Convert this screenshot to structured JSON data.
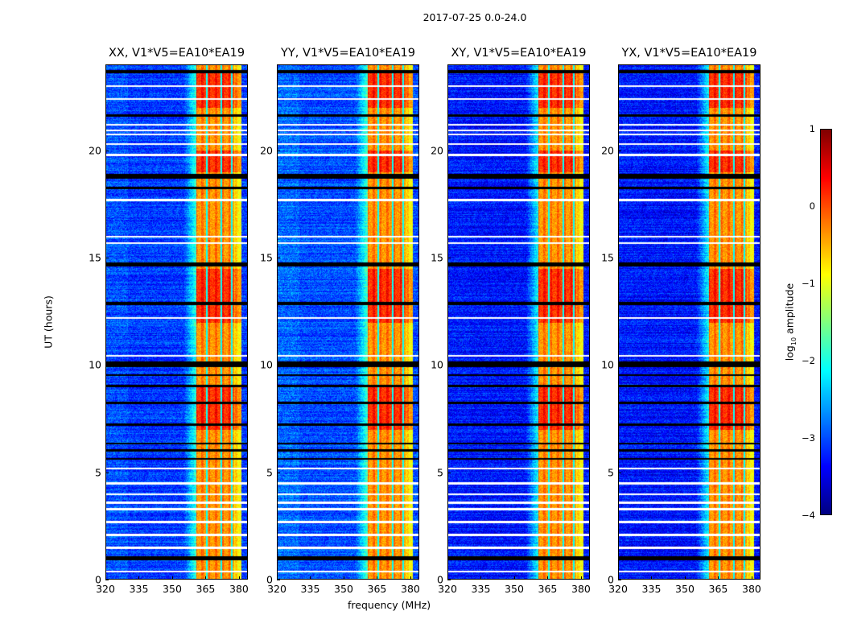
{
  "chart_data": {
    "type": "heatmap",
    "title": "2017-07-25 0.0-24.0",
    "xlabel": "frequency (MHz)",
    "ylabel": "UT (hours)",
    "xlim": [
      320,
      384
    ],
    "ylim": [
      0,
      24
    ],
    "xticks": [
      "320",
      "335",
      "350",
      "365",
      "380"
    ],
    "xtick_values": [
      320,
      335,
      350,
      365,
      380
    ],
    "yticks": [
      "0",
      "5",
      "10",
      "15",
      "20"
    ],
    "ytick_values": [
      0,
      5,
      10,
      15,
      20
    ],
    "colormap": "jet",
    "colorbar": {
      "label_main": "log",
      "label_sub": "10",
      "label_rest": " amplitude",
      "range": [
        -4,
        1
      ],
      "ticks": [
        "1",
        "0",
        "−1",
        "−2",
        "−3",
        "−4"
      ],
      "tick_values": [
        1,
        0,
        -1,
        -2,
        -3,
        -4
      ]
    },
    "panels": [
      {
        "title": "XX, V1*V5=EA10*EA19",
        "background": -3.1,
        "low_freq_enhance": -2.3
      },
      {
        "title": "YY, V1*V5=EA10*EA19",
        "background": -3.0,
        "low_freq_enhance": -2.0
      },
      {
        "title": "XY, V1*V5=EA10*EA19",
        "background": -3.3,
        "low_freq_enhance": -3.0
      },
      {
        "title": "YX, V1*V5=EA10*EA19",
        "background": -3.3,
        "low_freq_enhance": -3.0
      }
    ],
    "rfi_band_mhz": [
      360.5,
      381
    ],
    "rfi_band_level": -0.4,
    "rfi_stripe_mhz": [
      365.5,
      372,
      376.5
    ],
    "strong_rfi_hours": [
      [
        7,
        9
      ],
      [
        12,
        14.5
      ],
      [
        22,
        23.6
      ],
      [
        19,
        20
      ]
    ],
    "flagged_white_hours": [
      0.4,
      1.5,
      2.1,
      2.7,
      3.3,
      3.6,
      4.0,
      4.5,
      5.2,
      10.45,
      12.2,
      15.7,
      16.0,
      17.7,
      19.8,
      20.3,
      20.75,
      20.95,
      21.2,
      22.4,
      23.0
    ],
    "no_data_black_hours": [
      [
        0.9,
        1.1
      ],
      [
        5.6,
        5.7
      ],
      [
        6.0,
        6.1
      ],
      [
        6.3,
        6.4
      ],
      [
        7.2,
        7.3
      ],
      [
        8.2,
        8.3
      ],
      [
        9.0,
        9.1
      ],
      [
        9.5,
        9.6
      ],
      [
        9.9,
        10.2
      ],
      [
        12.8,
        12.95
      ],
      [
        14.6,
        14.8
      ],
      [
        18.2,
        18.3
      ],
      [
        18.7,
        18.9
      ],
      [
        21.6,
        21.7
      ],
      [
        23.6,
        23.75
      ]
    ]
  }
}
